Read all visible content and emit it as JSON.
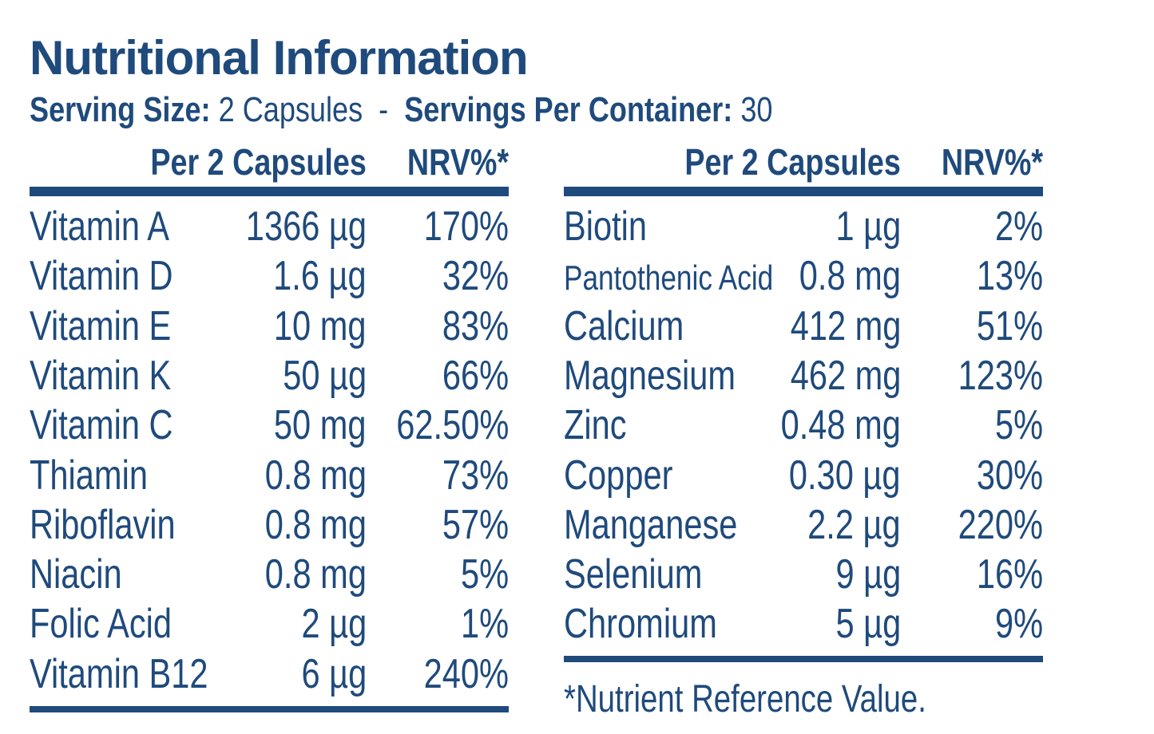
{
  "title": "Nutritional Information",
  "serving": {
    "size_label": "Serving Size:",
    "size_value": "2 Capsules",
    "separator": "-",
    "per_container_label": "Servings Per Container:",
    "per_container_value": "30"
  },
  "columns": {
    "amount": "Per 2 Capsules",
    "nrv": "NRV%*"
  },
  "left_table": [
    {
      "name": "Vitamin A",
      "amount": "1366 µg",
      "nrv": "170%"
    },
    {
      "name": "Vitamin D",
      "amount": "1.6 µg",
      "nrv": "32%"
    },
    {
      "name": "Vitamin E",
      "amount": "10 mg",
      "nrv": "83%"
    },
    {
      "name": "Vitamin K",
      "amount": "50 µg",
      "nrv": "66%"
    },
    {
      "name": "Vitamin C",
      "amount": "50 mg",
      "nrv": "62.50%"
    },
    {
      "name": "Thiamin",
      "amount": "0.8 mg",
      "nrv": "73%"
    },
    {
      "name": "Riboflavin",
      "amount": "0.8 mg",
      "nrv": "57%"
    },
    {
      "name": "Niacin",
      "amount": "0.8 mg",
      "nrv": "5%"
    },
    {
      "name": "Folic Acid",
      "amount": "2 µg",
      "nrv": "1%"
    },
    {
      "name": "Vitamin B12",
      "amount": "6 µg",
      "nrv": "240%"
    }
  ],
  "right_table": [
    {
      "name": "Biotin",
      "amount": "1 µg",
      "nrv": "2%"
    },
    {
      "name": "Pantothenic Acid",
      "amount": "0.8 mg",
      "nrv": "13%"
    },
    {
      "name": "Calcium",
      "amount": "412 mg",
      "nrv": "51%"
    },
    {
      "name": "Magnesium",
      "amount": "462 mg",
      "nrv": "123%"
    },
    {
      "name": "Zinc",
      "amount": "0.48 mg",
      "nrv": "5%"
    },
    {
      "name": "Copper",
      "amount": "0.30 µg",
      "nrv": "30%"
    },
    {
      "name": "Manganese",
      "amount": "2.2 µg",
      "nrv": "220%"
    },
    {
      "name": "Selenium",
      "amount": "9 µg",
      "nrv": "16%"
    },
    {
      "name": "Chromium",
      "amount": "5 µg",
      "nrv": "9%"
    }
  ],
  "footnote": "*Nutrient Reference Value.",
  "colors": {
    "text": "#1f4a7c",
    "background": "#ffffff"
  }
}
